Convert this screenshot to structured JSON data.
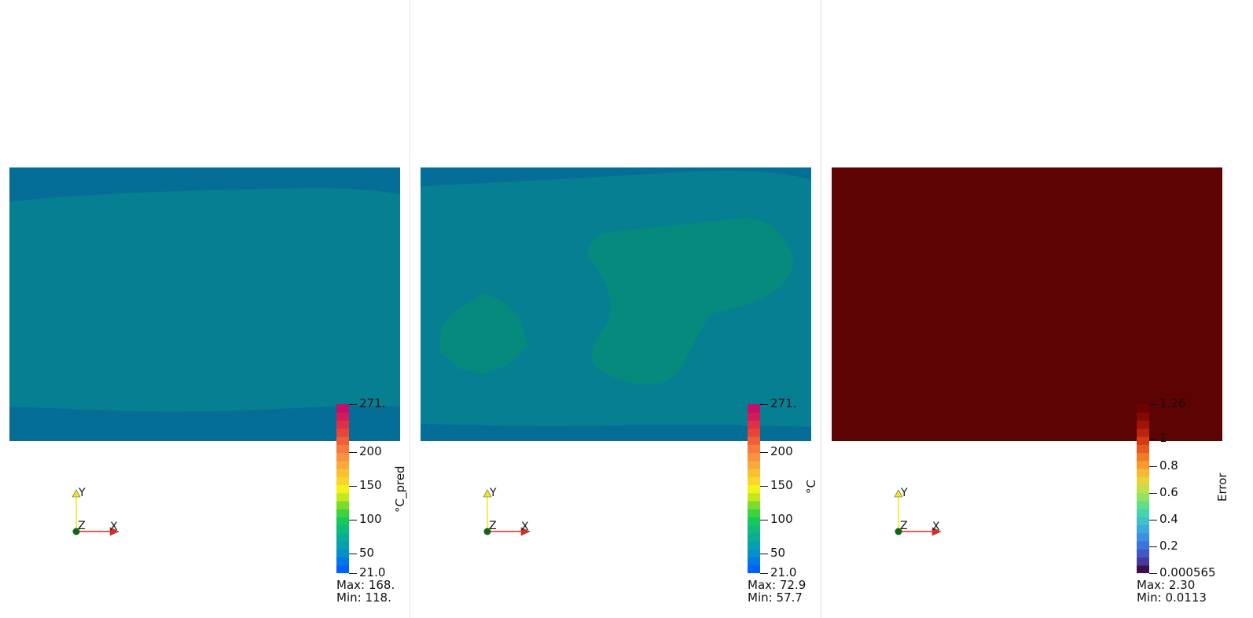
{
  "panels": [
    {
      "id": "prediction",
      "field_color": "#077f92",
      "bar": {
        "title": "°C_pred",
        "ticks": [
          {
            "label": "271.",
            "value": 271
          },
          {
            "label": "200",
            "value": 200
          },
          {
            "label": "150",
            "value": 150
          },
          {
            "label": "100",
            "value": 100
          },
          {
            "label": "50",
            "value": 50
          },
          {
            "label": "21.0",
            "value": 21
          }
        ],
        "range": [
          21,
          271
        ],
        "max_text": "Max: 168.",
        "min_text": "Min: 118."
      }
    },
    {
      "id": "ground-truth",
      "field_color": "#077f92",
      "bar": {
        "title": "°C",
        "ticks": [
          {
            "label": "271.",
            "value": 271
          },
          {
            "label": "200",
            "value": 200
          },
          {
            "label": "150",
            "value": 150
          },
          {
            "label": "100",
            "value": 100
          },
          {
            "label": "50",
            "value": 50
          },
          {
            "label": "21.0",
            "value": 21
          }
        ],
        "range": [
          21,
          271
        ],
        "max_text": "Max: 72.9",
        "min_text": "Min: 57.7"
      }
    },
    {
      "id": "error",
      "field_color": "#5e0303",
      "bar": {
        "title": "Error",
        "ticks": [
          {
            "label": "1.26",
            "value": 1.26
          },
          {
            "label": "1",
            "value": 1
          },
          {
            "label": "0.8",
            "value": 0.8
          },
          {
            "label": "0.6",
            "value": 0.6
          },
          {
            "label": "0.4",
            "value": 0.4
          },
          {
            "label": "0.2",
            "value": 0.2
          },
          {
            "label": "0.000565",
            "value": 0.000565
          }
        ],
        "range": [
          0.000565,
          1.26
        ],
        "max_text": "Max: 2.30",
        "min_text": "Min: 0.0113"
      }
    }
  ],
  "axes": {
    "x": "X",
    "y": "Y",
    "z": "Z"
  },
  "colors": {
    "edge_band": "#056e96",
    "main_field": "#077f92",
    "hot_region": "#068a7e",
    "error_field": "#5e0303",
    "axis_x": "#e8261b",
    "axis_y": "#f5e51a",
    "axis_origin": "#13641a"
  }
}
